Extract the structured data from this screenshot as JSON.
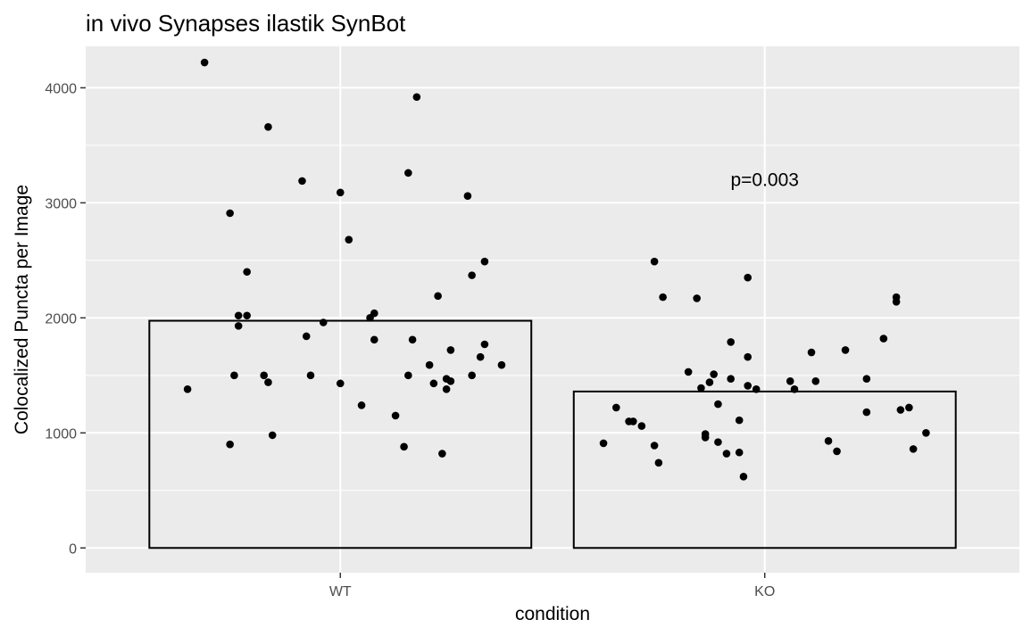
{
  "chart_data": {
    "type": "bar",
    "title": "in vivo Synapses ilastik SynBot",
    "xlabel": "condition",
    "ylabel": "Colocalized Puncta per Image",
    "categories": [
      "WT",
      "KO"
    ],
    "values": [
      1975,
      1360
    ],
    "ylim": [
      -215,
      4360
    ],
    "yticks": [
      0,
      1000,
      2000,
      3000,
      4000
    ],
    "grid": true,
    "annotation": "p=0.003",
    "annotation_position": {
      "x": 1.0,
      "y": 3200
    },
    "points": [
      {
        "group": "WT",
        "x": 0.64,
        "y": 1380
      },
      {
        "group": "WT",
        "x": 0.68,
        "y": 4220
      },
      {
        "group": "WT",
        "x": 0.74,
        "y": 2910
      },
      {
        "group": "WT",
        "x": 0.74,
        "y": 900
      },
      {
        "group": "WT",
        "x": 0.75,
        "y": 1500
      },
      {
        "group": "WT",
        "x": 0.76,
        "y": 2020
      },
      {
        "group": "WT",
        "x": 0.76,
        "y": 1930
      },
      {
        "group": "WT",
        "x": 0.78,
        "y": 2400
      },
      {
        "group": "WT",
        "x": 0.78,
        "y": 2020
      },
      {
        "group": "WT",
        "x": 0.82,
        "y": 1500
      },
      {
        "group": "WT",
        "x": 0.83,
        "y": 3660
      },
      {
        "group": "WT",
        "x": 0.83,
        "y": 1440
      },
      {
        "group": "WT",
        "x": 0.84,
        "y": 980
      },
      {
        "group": "WT",
        "x": 0.91,
        "y": 3190
      },
      {
        "group": "WT",
        "x": 0.92,
        "y": 1840
      },
      {
        "group": "WT",
        "x": 0.93,
        "y": 1500
      },
      {
        "group": "WT",
        "x": 0.96,
        "y": 1960
      },
      {
        "group": "WT",
        "x": 1.0,
        "y": 3090
      },
      {
        "group": "WT",
        "x": 1.0,
        "y": 1430
      },
      {
        "group": "WT",
        "x": 1.02,
        "y": 2680
      },
      {
        "group": "WT",
        "x": 1.05,
        "y": 1240
      },
      {
        "group": "WT",
        "x": 1.07,
        "y": 2000
      },
      {
        "group": "WT",
        "x": 1.08,
        "y": 2040
      },
      {
        "group": "WT",
        "x": 1.08,
        "y": 1810
      },
      {
        "group": "WT",
        "x": 1.13,
        "y": 1150
      },
      {
        "group": "WT",
        "x": 1.15,
        "y": 880
      },
      {
        "group": "WT",
        "x": 1.16,
        "y": 1500
      },
      {
        "group": "WT",
        "x": 1.16,
        "y": 3260
      },
      {
        "group": "WT",
        "x": 1.17,
        "y": 1810
      },
      {
        "group": "WT",
        "x": 1.18,
        "y": 3920
      },
      {
        "group": "WT",
        "x": 1.21,
        "y": 1590
      },
      {
        "group": "WT",
        "x": 1.22,
        "y": 1430
      },
      {
        "group": "WT",
        "x": 1.23,
        "y": 2190
      },
      {
        "group": "WT",
        "x": 1.24,
        "y": 820
      },
      {
        "group": "WT",
        "x": 1.25,
        "y": 1380
      },
      {
        "group": "WT",
        "x": 1.25,
        "y": 1470
      },
      {
        "group": "WT",
        "x": 1.26,
        "y": 1720
      },
      {
        "group": "WT",
        "x": 1.26,
        "y": 1450
      },
      {
        "group": "WT",
        "x": 1.3,
        "y": 3060
      },
      {
        "group": "WT",
        "x": 1.31,
        "y": 1500
      },
      {
        "group": "WT",
        "x": 1.31,
        "y": 2370
      },
      {
        "group": "WT",
        "x": 1.33,
        "y": 1660
      },
      {
        "group": "WT",
        "x": 1.34,
        "y": 2490
      },
      {
        "group": "WT",
        "x": 1.34,
        "y": 1770
      },
      {
        "group": "WT",
        "x": 1.38,
        "y": 1590
      },
      {
        "group": "KO",
        "x": 1.62,
        "y": 910
      },
      {
        "group": "KO",
        "x": 1.65,
        "y": 1220
      },
      {
        "group": "KO",
        "x": 1.68,
        "y": 1100
      },
      {
        "group": "KO",
        "x": 1.69,
        "y": 1100
      },
      {
        "group": "KO",
        "x": 1.71,
        "y": 1060
      },
      {
        "group": "KO",
        "x": 1.74,
        "y": 2490
      },
      {
        "group": "KO",
        "x": 1.74,
        "y": 890
      },
      {
        "group": "KO",
        "x": 1.75,
        "y": 740
      },
      {
        "group": "KO",
        "x": 1.76,
        "y": 2180
      },
      {
        "group": "KO",
        "x": 1.82,
        "y": 1530
      },
      {
        "group": "KO",
        "x": 1.84,
        "y": 2170
      },
      {
        "group": "KO",
        "x": 1.85,
        "y": 1390
      },
      {
        "group": "KO",
        "x": 1.86,
        "y": 960
      },
      {
        "group": "KO",
        "x": 1.86,
        "y": 990
      },
      {
        "group": "KO",
        "x": 1.87,
        "y": 1440
      },
      {
        "group": "KO",
        "x": 1.88,
        "y": 1510
      },
      {
        "group": "KO",
        "x": 1.89,
        "y": 920
      },
      {
        "group": "KO",
        "x": 1.89,
        "y": 1250
      },
      {
        "group": "KO",
        "x": 1.91,
        "y": 820
      },
      {
        "group": "KO",
        "x": 1.92,
        "y": 1470
      },
      {
        "group": "KO",
        "x": 1.92,
        "y": 1790
      },
      {
        "group": "KO",
        "x": 1.94,
        "y": 1110
      },
      {
        "group": "KO",
        "x": 1.94,
        "y": 830
      },
      {
        "group": "KO",
        "x": 1.95,
        "y": 620
      },
      {
        "group": "KO",
        "x": 1.96,
        "y": 1410
      },
      {
        "group": "KO",
        "x": 1.96,
        "y": 1660
      },
      {
        "group": "KO",
        "x": 1.96,
        "y": 2350
      },
      {
        "group": "KO",
        "x": 1.98,
        "y": 1380
      },
      {
        "group": "KO",
        "x": 2.06,
        "y": 1450
      },
      {
        "group": "KO",
        "x": 2.07,
        "y": 1380
      },
      {
        "group": "KO",
        "x": 2.11,
        "y": 1700
      },
      {
        "group": "KO",
        "x": 2.12,
        "y": 1450
      },
      {
        "group": "KO",
        "x": 2.15,
        "y": 930
      },
      {
        "group": "KO",
        "x": 2.17,
        "y": 840
      },
      {
        "group": "KO",
        "x": 2.19,
        "y": 1720
      },
      {
        "group": "KO",
        "x": 2.24,
        "y": 1180
      },
      {
        "group": "KO",
        "x": 2.24,
        "y": 1470
      },
      {
        "group": "KO",
        "x": 2.28,
        "y": 1820
      },
      {
        "group": "KO",
        "x": 2.31,
        "y": 2140
      },
      {
        "group": "KO",
        "x": 2.31,
        "y": 2180
      },
      {
        "group": "KO",
        "x": 2.32,
        "y": 1200
      },
      {
        "group": "KO",
        "x": 2.34,
        "y": 1220
      },
      {
        "group": "KO",
        "x": 2.35,
        "y": 860
      },
      {
        "group": "KO",
        "x": 2.38,
        "y": 1000
      }
    ],
    "colors": {
      "panel": "#ebebeb",
      "grid": "#ffffff",
      "bar_outline": "#000000",
      "bar_fill": "none",
      "point": "#000000",
      "tick_text": "#4d4d4d",
      "tick_mark": "#333333"
    }
  }
}
